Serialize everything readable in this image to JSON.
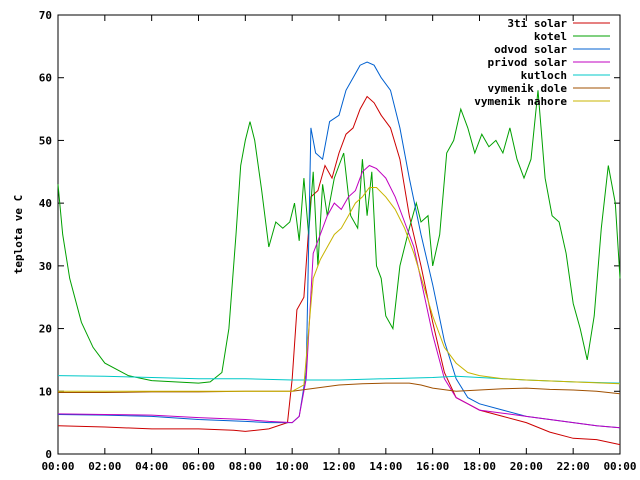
{
  "chart_data": {
    "type": "line",
    "title": "",
    "xlabel": "",
    "ylabel": "teplota ve C",
    "x_ticks": [
      "00:00",
      "02:00",
      "04:00",
      "06:00",
      "08:00",
      "10:00",
      "12:00",
      "14:00",
      "16:00",
      "18:00",
      "20:00",
      "22:00",
      "00:00"
    ],
    "xlim": [
      0,
      24
    ],
    "ylim": [
      0,
      70
    ],
    "y_ticks": [
      0,
      10,
      20,
      30,
      40,
      50,
      60,
      70
    ],
    "grid": false,
    "legend_position": "top-right",
    "series": [
      {
        "name": "3ti solar",
        "color": "#cc0000",
        "points": [
          [
            0,
            4.5
          ],
          [
            2,
            4.3
          ],
          [
            4,
            4.0
          ],
          [
            6,
            4.0
          ],
          [
            7.5,
            3.8
          ],
          [
            8,
            3.6
          ],
          [
            9,
            4.0
          ],
          [
            9.8,
            5.0
          ],
          [
            10.0,
            12
          ],
          [
            10.2,
            23
          ],
          [
            10.5,
            25
          ],
          [
            10.8,
            41
          ],
          [
            11.1,
            42
          ],
          [
            11.4,
            46
          ],
          [
            11.7,
            44
          ],
          [
            12.0,
            48
          ],
          [
            12.3,
            51
          ],
          [
            12.6,
            52
          ],
          [
            12.9,
            55
          ],
          [
            13.2,
            57
          ],
          [
            13.5,
            56
          ],
          [
            13.8,
            54
          ],
          [
            14.2,
            52
          ],
          [
            14.6,
            47
          ],
          [
            15.0,
            38
          ],
          [
            15.5,
            30
          ],
          [
            16.0,
            21
          ],
          [
            16.5,
            13
          ],
          [
            17.0,
            9
          ],
          [
            17.5,
            8
          ],
          [
            18.0,
            7
          ],
          [
            19.0,
            6
          ],
          [
            20.0,
            5.0
          ],
          [
            21.0,
            3.5
          ],
          [
            22.0,
            2.5
          ],
          [
            23.0,
            2.3
          ],
          [
            24.0,
            1.5
          ]
        ]
      },
      {
        "name": "kotel",
        "color": "#00a000",
        "points": [
          [
            0,
            43
          ],
          [
            0.2,
            35
          ],
          [
            0.5,
            28
          ],
          [
            1.0,
            21
          ],
          [
            1.5,
            17
          ],
          [
            2.0,
            14.5
          ],
          [
            3.0,
            12.5
          ],
          [
            4.0,
            11.7
          ],
          [
            5.0,
            11.5
          ],
          [
            6.0,
            11.3
          ],
          [
            6.5,
            11.5
          ],
          [
            7.0,
            13
          ],
          [
            7.3,
            20
          ],
          [
            7.6,
            35
          ],
          [
            7.8,
            46
          ],
          [
            8.0,
            50
          ],
          [
            8.2,
            53
          ],
          [
            8.4,
            50
          ],
          [
            8.7,
            42
          ],
          [
            9.0,
            33
          ],
          [
            9.3,
            37
          ],
          [
            9.6,
            36
          ],
          [
            9.9,
            37
          ],
          [
            10.1,
            40
          ],
          [
            10.3,
            34
          ],
          [
            10.5,
            44
          ],
          [
            10.7,
            35
          ],
          [
            10.9,
            45
          ],
          [
            11.1,
            30
          ],
          [
            11.3,
            43
          ],
          [
            11.5,
            38
          ],
          [
            11.8,
            44
          ],
          [
            12.0,
            46
          ],
          [
            12.2,
            48
          ],
          [
            12.5,
            38
          ],
          [
            12.8,
            36
          ],
          [
            13.0,
            47
          ],
          [
            13.2,
            38
          ],
          [
            13.4,
            45
          ],
          [
            13.6,
            30
          ],
          [
            13.8,
            28
          ],
          [
            14.0,
            22
          ],
          [
            14.3,
            20
          ],
          [
            14.6,
            30
          ],
          [
            15.0,
            36
          ],
          [
            15.3,
            40
          ],
          [
            15.5,
            37
          ],
          [
            15.8,
            38
          ],
          [
            16.0,
            30
          ],
          [
            16.3,
            35
          ],
          [
            16.6,
            48
          ],
          [
            16.9,
            50
          ],
          [
            17.2,
            55
          ],
          [
            17.5,
            52
          ],
          [
            17.8,
            48
          ],
          [
            18.1,
            51
          ],
          [
            18.4,
            49
          ],
          [
            18.7,
            50
          ],
          [
            19.0,
            48
          ],
          [
            19.3,
            52
          ],
          [
            19.6,
            47
          ],
          [
            19.9,
            44
          ],
          [
            20.2,
            47
          ],
          [
            20.5,
            58
          ],
          [
            20.8,
            44
          ],
          [
            21.1,
            38
          ],
          [
            21.4,
            37
          ],
          [
            21.7,
            32
          ],
          [
            22.0,
            24
          ],
          [
            22.3,
            20
          ],
          [
            22.6,
            15
          ],
          [
            22.9,
            22
          ],
          [
            23.2,
            36
          ],
          [
            23.5,
            46
          ],
          [
            23.8,
            40
          ],
          [
            24.0,
            28
          ]
        ]
      },
      {
        "name": "odvod solar",
        "color": "#0060d0",
        "points": [
          [
            0,
            6.3
          ],
          [
            2,
            6.2
          ],
          [
            4,
            6.0
          ],
          [
            6,
            5.5
          ],
          [
            8,
            5.2
          ],
          [
            9,
            5.0
          ],
          [
            10,
            5.0
          ],
          [
            10.3,
            6
          ],
          [
            10.6,
            13
          ],
          [
            10.8,
            52
          ],
          [
            11.0,
            48
          ],
          [
            11.3,
            47
          ],
          [
            11.6,
            53
          ],
          [
            12.0,
            54
          ],
          [
            12.3,
            58
          ],
          [
            12.6,
            60
          ],
          [
            12.9,
            62
          ],
          [
            13.2,
            62.5
          ],
          [
            13.5,
            62
          ],
          [
            13.8,
            60
          ],
          [
            14.2,
            58
          ],
          [
            14.6,
            52
          ],
          [
            15.0,
            44
          ],
          [
            15.5,
            35
          ],
          [
            16.0,
            27
          ],
          [
            16.5,
            18
          ],
          [
            17.0,
            12
          ],
          [
            17.5,
            9
          ],
          [
            18.0,
            8
          ],
          [
            19.0,
            7
          ],
          [
            20.0,
            6
          ],
          [
            21.0,
            5.5
          ],
          [
            22.0,
            5.0
          ],
          [
            23.0,
            4.5
          ],
          [
            24.0,
            4.2
          ]
        ]
      },
      {
        "name": "privod solar",
        "color": "#c000c0",
        "points": [
          [
            0,
            6.4
          ],
          [
            2,
            6.3
          ],
          [
            4,
            6.2
          ],
          [
            6,
            5.8
          ],
          [
            8,
            5.5
          ],
          [
            9,
            5.2
          ],
          [
            10,
            5.0
          ],
          [
            10.3,
            6
          ],
          [
            10.6,
            12
          ],
          [
            10.9,
            32
          ],
          [
            11.2,
            35
          ],
          [
            11.5,
            38
          ],
          [
            11.8,
            40
          ],
          [
            12.1,
            39
          ],
          [
            12.4,
            41
          ],
          [
            12.7,
            42
          ],
          [
            13.0,
            45
          ],
          [
            13.3,
            46
          ],
          [
            13.6,
            45.5
          ],
          [
            14.0,
            44
          ],
          [
            14.4,
            41
          ],
          [
            14.8,
            37
          ],
          [
            15.2,
            33
          ],
          [
            15.6,
            26
          ],
          [
            16.0,
            19
          ],
          [
            16.5,
            12
          ],
          [
            17.0,
            9
          ],
          [
            17.5,
            8
          ],
          [
            18.0,
            7
          ],
          [
            19.0,
            6.5
          ],
          [
            20.0,
            6
          ],
          [
            21.0,
            5.5
          ],
          [
            22.0,
            5.0
          ],
          [
            23.0,
            4.5
          ],
          [
            24.0,
            4.2
          ]
        ]
      },
      {
        "name": "kutloch",
        "color": "#00c8c8",
        "points": [
          [
            0,
            12.5
          ],
          [
            2,
            12.4
          ],
          [
            4,
            12.2
          ],
          [
            6,
            12.0
          ],
          [
            8,
            12.0
          ],
          [
            10,
            11.8
          ],
          [
            12,
            11.8
          ],
          [
            14,
            12.0
          ],
          [
            16,
            12.2
          ],
          [
            17,
            12.4
          ],
          [
            18,
            12.2
          ],
          [
            19,
            12.0
          ],
          [
            20,
            11.8
          ],
          [
            22,
            11.5
          ],
          [
            24,
            11.3
          ]
        ]
      },
      {
        "name": "vymenik dole",
        "color": "#a05000",
        "points": [
          [
            0,
            9.8
          ],
          [
            2,
            9.8
          ],
          [
            4,
            9.9
          ],
          [
            6,
            9.9
          ],
          [
            8,
            10.0
          ],
          [
            10,
            10.0
          ],
          [
            11,
            10.5
          ],
          [
            12,
            11.0
          ],
          [
            13,
            11.2
          ],
          [
            14,
            11.3
          ],
          [
            15,
            11.3
          ],
          [
            15.5,
            11.0
          ],
          [
            16,
            10.5
          ],
          [
            17,
            10.0
          ],
          [
            18,
            10.2
          ],
          [
            19,
            10.4
          ],
          [
            20,
            10.5
          ],
          [
            21,
            10.3
          ],
          [
            22,
            10.2
          ],
          [
            23,
            10.0
          ],
          [
            24,
            9.6
          ]
        ]
      },
      {
        "name": "vymenik nahore",
        "color": "#c8b400",
        "points": [
          [
            0,
            10.0
          ],
          [
            2,
            10.0
          ],
          [
            4,
            10.0
          ],
          [
            6,
            10.0
          ],
          [
            8,
            10.0
          ],
          [
            9,
            10.0
          ],
          [
            10,
            10.0
          ],
          [
            10.5,
            11
          ],
          [
            10.9,
            28
          ],
          [
            11.2,
            31
          ],
          [
            11.5,
            33
          ],
          [
            11.8,
            35
          ],
          [
            12.1,
            36
          ],
          [
            12.4,
            38
          ],
          [
            12.7,
            40
          ],
          [
            13.0,
            41
          ],
          [
            13.3,
            42.5
          ],
          [
            13.6,
            42.5
          ],
          [
            14.0,
            41
          ],
          [
            14.4,
            39
          ],
          [
            14.8,
            36
          ],
          [
            15.2,
            32
          ],
          [
            15.6,
            27
          ],
          [
            16.0,
            22
          ],
          [
            16.5,
            17
          ],
          [
            17.0,
            14.5
          ],
          [
            17.5,
            13
          ],
          [
            18.0,
            12.5
          ],
          [
            19.0,
            12
          ],
          [
            20.0,
            11.8
          ],
          [
            22.0,
            11.5
          ],
          [
            24.0,
            11.2
          ]
        ]
      }
    ]
  }
}
